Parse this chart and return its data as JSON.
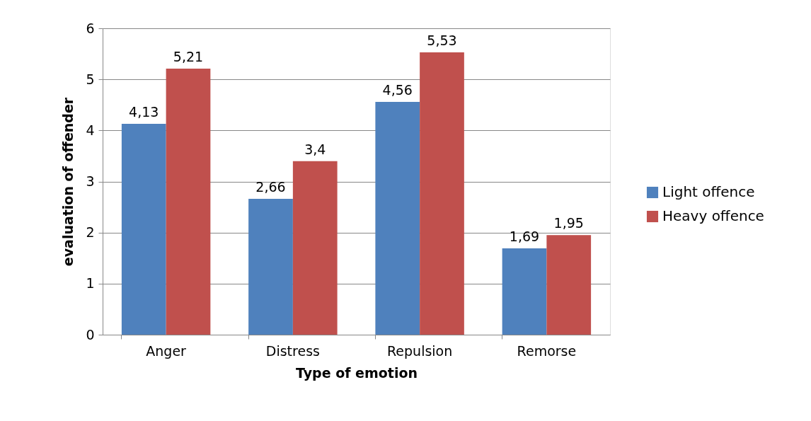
{
  "chart_data": {
    "type": "bar",
    "xlabel": "Type of emotion",
    "ylabel": "evaluation of offender",
    "categories": [
      "Anger",
      "Distress",
      "Repulsion",
      "Remorse"
    ],
    "series": [
      {
        "name": "Light offence",
        "color": "#4f81bd",
        "values": [
          4.13,
          2.66,
          4.56,
          1.69
        ],
        "value_labels": [
          "4,13",
          "2,66",
          "4,56",
          "1,69"
        ]
      },
      {
        "name": "Heavy offence",
        "color": "#c0504d",
        "values": [
          5.21,
          3.4,
          5.53,
          1.95
        ],
        "value_labels": [
          "5,21",
          "3,4",
          "5,53",
          "1,95"
        ]
      }
    ],
    "ylim": [
      0,
      6
    ],
    "yticks": [
      0,
      1,
      2,
      3,
      4,
      5,
      6
    ],
    "grid": "y",
    "legend": "right"
  }
}
